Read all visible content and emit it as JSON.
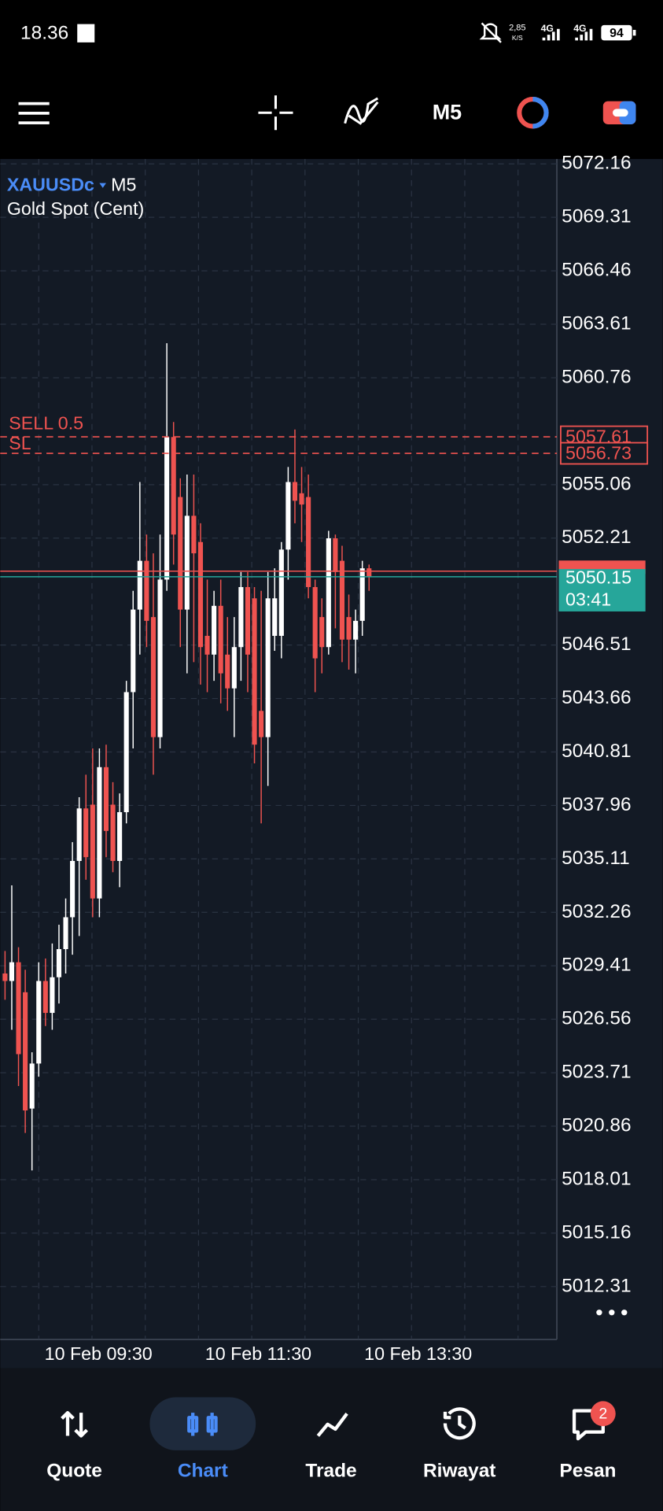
{
  "status_bar": {
    "time": "18.36",
    "speed": "2,85",
    "speed_unit": "K/S",
    "network": "4G",
    "network2": "4G",
    "battery": "94"
  },
  "toolbar": {
    "timeframe": "M5"
  },
  "chart": {
    "type": "candlestick",
    "symbol": "XAUUSDc",
    "timeframe": "M5",
    "description": "Gold Spot (Cent)",
    "ylim": [
      5009.49,
      5072.42
    ],
    "yticks": [
      5072.16,
      5069.31,
      5066.46,
      5063.61,
      5060.76,
      5055.06,
      5052.21,
      5046.51,
      5043.66,
      5040.81,
      5037.96,
      5035.11,
      5032.26,
      5029.41,
      5026.56,
      5023.71,
      5020.86,
      5018.01,
      5015.16,
      5012.31
    ],
    "xlabels": [
      "10 Feb 09:30",
      "10 Feb 11:30",
      "10 Feb 13:30"
    ],
    "up_color": "#ffffff",
    "down_color": "#ef5350",
    "candles": [
      {
        "o": 5029.0,
        "h": 5030.2,
        "l": 5027.6,
        "c": 5028.6
      },
      {
        "o": 5028.6,
        "h": 5033.7,
        "l": 5026.0,
        "c": 5029.6
      },
      {
        "o": 5029.6,
        "h": 5030.4,
        "l": 5023.0,
        "c": 5024.7
      },
      {
        "o": 5028.0,
        "h": 5029.2,
        "l": 5020.5,
        "c": 5021.7
      },
      {
        "o": 5021.8,
        "h": 5024.8,
        "l": 5018.5,
        "c": 5024.2
      },
      {
        "o": 5024.2,
        "h": 5029.6,
        "l": 5023.5,
        "c": 5028.6
      },
      {
        "o": 5028.6,
        "h": 5029.8,
        "l": 5026.2,
        "c": 5026.9
      },
      {
        "o": 5026.9,
        "h": 5030.6,
        "l": 5026.0,
        "c": 5028.8
      },
      {
        "o": 5028.8,
        "h": 5031.6,
        "l": 5027.4,
        "c": 5030.3
      },
      {
        "o": 5030.3,
        "h": 5033.0,
        "l": 5029.0,
        "c": 5032.0
      },
      {
        "o": 5032.0,
        "h": 5036.0,
        "l": 5030.0,
        "c": 5035.0
      },
      {
        "o": 5035.0,
        "h": 5038.4,
        "l": 5031.0,
        "c": 5037.8
      },
      {
        "o": 5037.8,
        "h": 5039.6,
        "l": 5034.0,
        "c": 5035.2
      },
      {
        "o": 5038.0,
        "h": 5041.0,
        "l": 5032.0,
        "c": 5033.0
      },
      {
        "o": 5033.0,
        "h": 5041.0,
        "l": 5032.0,
        "c": 5040.0
      },
      {
        "o": 5040.0,
        "h": 5041.2,
        "l": 5035.2,
        "c": 5036.6
      },
      {
        "o": 5038.0,
        "h": 5039.2,
        "l": 5034.4,
        "c": 5035.0
      },
      {
        "o": 5035.0,
        "h": 5038.6,
        "l": 5033.6,
        "c": 5037.6
      },
      {
        "o": 5037.6,
        "h": 5044.6,
        "l": 5037.0,
        "c": 5044.0
      },
      {
        "o": 5044.0,
        "h": 5049.4,
        "l": 5041.0,
        "c": 5048.4
      },
      {
        "o": 5048.4,
        "h": 5055.2,
        "l": 5046.0,
        "c": 5051.0
      },
      {
        "o": 5051.0,
        "h": 5052.4,
        "l": 5046.4,
        "c": 5047.8
      },
      {
        "o": 5048.0,
        "h": 5051.4,
        "l": 5039.6,
        "c": 5041.6
      },
      {
        "o": 5041.6,
        "h": 5052.4,
        "l": 5041.0,
        "c": 5050.0
      },
      {
        "o": 5050.0,
        "h": 5062.6,
        "l": 5049.4,
        "c": 5057.6
      },
      {
        "o": 5057.6,
        "h": 5058.4,
        "l": 5050.8,
        "c": 5052.4
      },
      {
        "o": 5054.4,
        "h": 5055.4,
        "l": 5046.4,
        "c": 5048.4
      },
      {
        "o": 5048.4,
        "h": 5055.6,
        "l": 5045.0,
        "c": 5053.4
      },
      {
        "o": 5053.4,
        "h": 5055.6,
        "l": 5045.6,
        "c": 5051.4
      },
      {
        "o": 5052.0,
        "h": 5053.0,
        "l": 5044.4,
        "c": 5046.4
      },
      {
        "o": 5047.0,
        "h": 5050.0,
        "l": 5044.0,
        "c": 5046.0
      },
      {
        "o": 5046.0,
        "h": 5049.4,
        "l": 5044.6,
        "c": 5048.6
      },
      {
        "o": 5048.6,
        "h": 5050.0,
        "l": 5043.4,
        "c": 5045.0
      },
      {
        "o": 5046.0,
        "h": 5048.0,
        "l": 5043.0,
        "c": 5044.2
      },
      {
        "o": 5044.2,
        "h": 5048.0,
        "l": 5041.6,
        "c": 5046.4
      },
      {
        "o": 5046.4,
        "h": 5050.4,
        "l": 5044.6,
        "c": 5049.6
      },
      {
        "o": 5049.6,
        "h": 5050.4,
        "l": 5044.0,
        "c": 5046.0
      },
      {
        "o": 5049.0,
        "h": 5049.6,
        "l": 5040.2,
        "c": 5041.2
      },
      {
        "o": 5043.0,
        "h": 5049.4,
        "l": 5037.0,
        "c": 5041.6
      },
      {
        "o": 5041.6,
        "h": 5050.4,
        "l": 5039.0,
        "c": 5049.0
      },
      {
        "o": 5047.0,
        "h": 5050.6,
        "l": 5046.2,
        "c": 5049.0
      },
      {
        "o": 5047.0,
        "h": 5052.0,
        "l": 5045.8,
        "c": 5051.6
      },
      {
        "o": 5051.6,
        "h": 5056.0,
        "l": 5050.0,
        "c": 5055.2
      },
      {
        "o": 5055.2,
        "h": 5058.0,
        "l": 5053.0,
        "c": 5054.2
      },
      {
        "o": 5054.6,
        "h": 5056.0,
        "l": 5052.0,
        "c": 5054.0
      },
      {
        "o": 5054.4,
        "h": 5055.6,
        "l": 5049.0,
        "c": 5049.6
      },
      {
        "o": 5049.6,
        "h": 5050.0,
        "l": 5044.0,
        "c": 5045.8
      },
      {
        "o": 5048.0,
        "h": 5049.0,
        "l": 5045.0,
        "c": 5046.4
      },
      {
        "o": 5046.4,
        "h": 5052.6,
        "l": 5046.0,
        "c": 5052.2
      },
      {
        "o": 5052.2,
        "h": 5052.4,
        "l": 5047.4,
        "c": 5050.4
      },
      {
        "o": 5051.0,
        "h": 5051.8,
        "l": 5045.6,
        "c": 5046.8
      },
      {
        "o": 5048.0,
        "h": 5049.2,
        "l": 5045.2,
        "c": 5046.8
      },
      {
        "o": 5046.8,
        "h": 5048.4,
        "l": 5045.0,
        "c": 5047.8
      },
      {
        "o": 5047.8,
        "h": 5051.0,
        "l": 5047.0,
        "c": 5050.6
      },
      {
        "o": 5050.6,
        "h": 5050.8,
        "l": 5049.4,
        "c": 5050.15
      }
    ],
    "orders": [
      {
        "label": "SELL 0.5",
        "price": 5057.61
      },
      {
        "label": "SL",
        "price": 5056.73
      }
    ],
    "ask": 5050.45,
    "bid": {
      "price": 5050.15,
      "countdown": "03:41"
    }
  },
  "nav": {
    "items": [
      "Quote",
      "Chart",
      "Trade",
      "Riwayat",
      "Pesan"
    ],
    "active": 1,
    "badge": "2"
  }
}
